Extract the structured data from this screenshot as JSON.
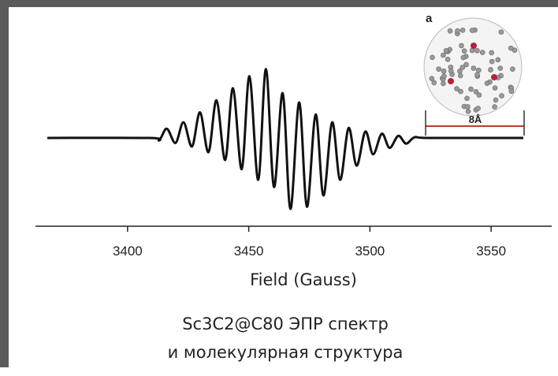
{
  "chart_data": {
    "type": "line",
    "xlabel": "Field (Gauss)",
    "caption": [
      "Sc3C2@C80 ЭПР спектр",
      "и молекулярная структура"
    ],
    "inset_label": "a",
    "inset_scale": "8Å",
    "x": [
      3366.9,
      3409.1,
      3413.0,
      3416.2,
      3419.8,
      3423.1,
      3426.6,
      3429.9,
      3433.4,
      3436.7,
      3440.3,
      3443.5,
      3447.1,
      3450.3,
      3453.9,
      3457.1,
      3460.4,
      3464.0,
      3467.2,
      3470.8,
      3474.0,
      3477.6,
      3480.8,
      3484.4,
      3487.7,
      3491.2,
      3494.5,
      3498.1,
      3501.3,
      3504.9,
      3508.1,
      3511.7,
      3514.9,
      3518.5,
      3524.4,
      3563.3
    ],
    "values": [
      0,
      0,
      -0.03,
      0.13,
      -0.07,
      0.22,
      -0.12,
      0.36,
      -0.2,
      0.53,
      -0.31,
      0.7,
      -0.44,
      0.87,
      -0.59,
      0.97,
      -0.69,
      0.63,
      -1.0,
      0.5,
      -0.97,
      0.33,
      -0.81,
      0.22,
      -0.59,
      0.14,
      -0.39,
      0.09,
      -0.23,
      0.06,
      -0.14,
      0.03,
      -0.08,
      0.01,
      0,
      0
    ],
    "color": "#111111",
    "xlim": [
      3362,
      3575
    ],
    "xticks": [
      3400,
      3450,
      3500,
      3550
    ],
    "ylim": [
      -1.1,
      1.1
    ]
  }
}
